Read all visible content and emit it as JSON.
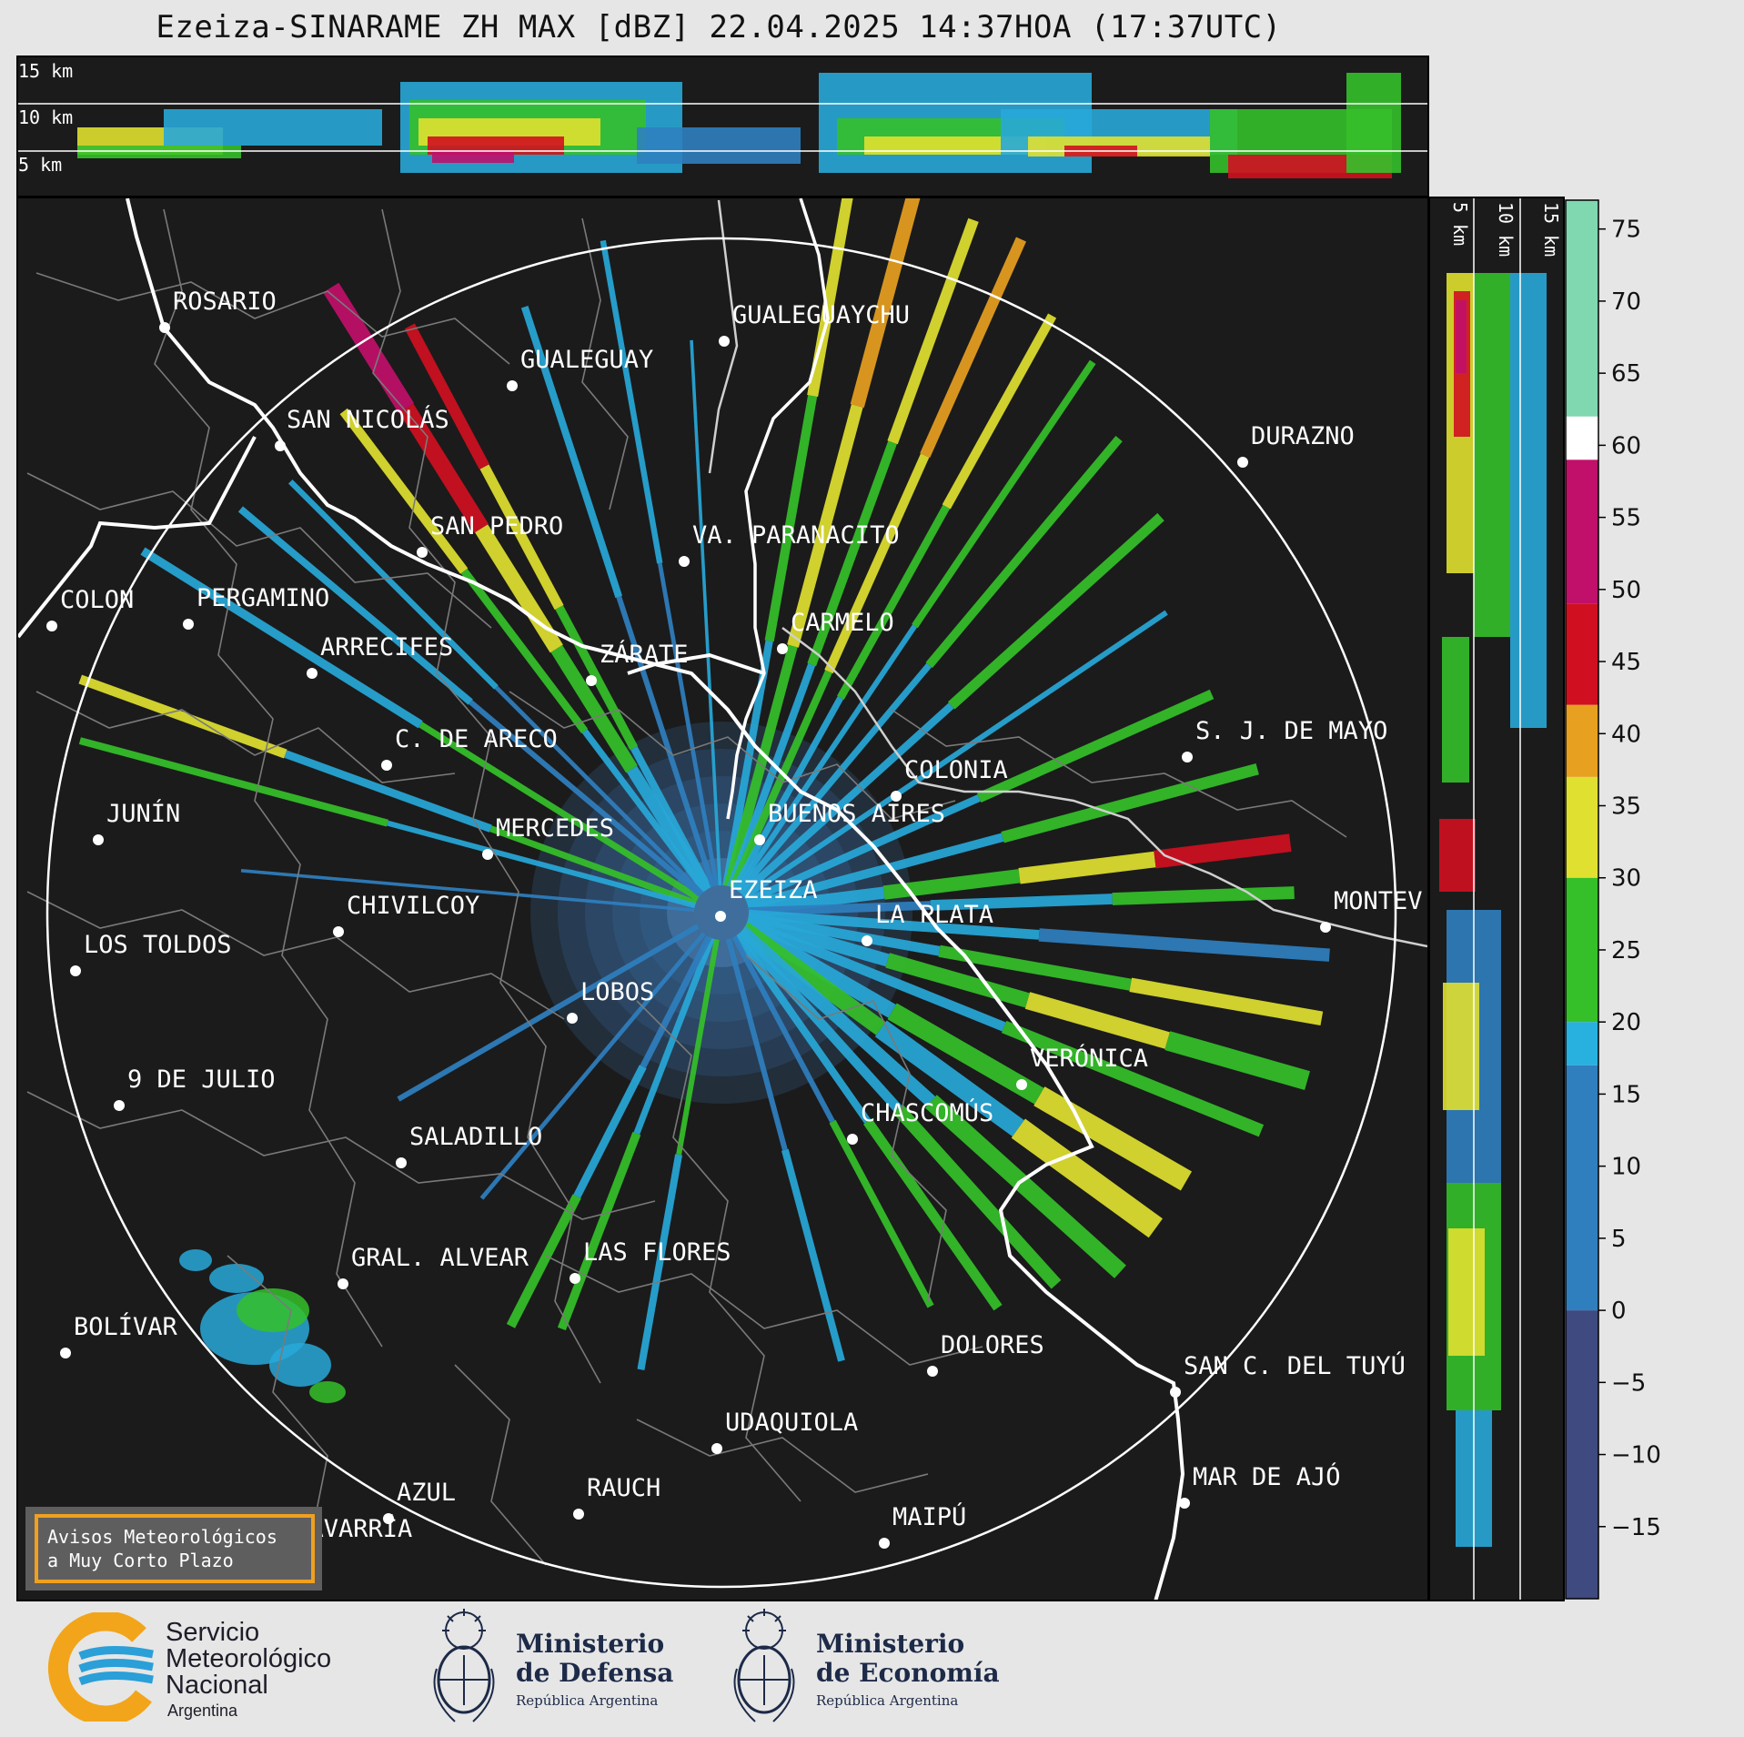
{
  "title": "Ezeiza-SINARAME ZH MAX [dBZ] 22.04.2025 14:37HOA (17:37UTC)",
  "top_panel": {
    "height_labels": [
      "15 km",
      "10 km",
      "5 km"
    ]
  },
  "side_panel": {
    "height_labels": [
      "5 km",
      "10 km",
      "15 km"
    ]
  },
  "colorbar": {
    "ticks": [
      "75",
      "70",
      "65",
      "60",
      "55",
      "50",
      "45",
      "40",
      "35",
      "30",
      "25",
      "20",
      "15",
      "10",
      "5",
      "0",
      "−5",
      "−10",
      "−15"
    ],
    "tick_values": [
      75,
      70,
      65,
      60,
      55,
      50,
      45,
      40,
      35,
      30,
      25,
      20,
      15,
      10,
      5,
      0,
      -5,
      -10,
      -15
    ],
    "range": [
      -20,
      77
    ],
    "bands": [
      {
        "from": -20,
        "to": 0,
        "color": "#3e4a80"
      },
      {
        "from": 0,
        "to": 17,
        "color": "#2f7fbf"
      },
      {
        "from": 17,
        "to": 20,
        "color": "#28b1df"
      },
      {
        "from": 20,
        "to": 30,
        "color": "#35c02a"
      },
      {
        "from": 30,
        "to": 37,
        "color": "#e0e030"
      },
      {
        "from": 37,
        "to": 42,
        "color": "#e8a020"
      },
      {
        "from": 42,
        "to": 49,
        "color": "#d01020"
      },
      {
        "from": 49,
        "to": 59,
        "color": "#c0106a"
      },
      {
        "from": 59,
        "to": 62,
        "color": "#ffffff"
      },
      {
        "from": 62,
        "to": 77,
        "color": "#7fd8b0"
      }
    ]
  },
  "map": {
    "places": [
      {
        "name": "ROSARIO"
      },
      {
        "name": "GUALEGUAYCHU"
      },
      {
        "name": "GUALEGUAY"
      },
      {
        "name": "SAN NICOLÁS"
      },
      {
        "name": "DURAZNO"
      },
      {
        "name": "SAN PEDRO"
      },
      {
        "name": "VA. PARANACITO"
      },
      {
        "name": "COLON"
      },
      {
        "name": "PERGAMINO"
      },
      {
        "name": "CARMELO"
      },
      {
        "name": "ARRECIFES"
      },
      {
        "name": "ZÁRATE"
      },
      {
        "name": "S. J. DE MAYO"
      },
      {
        "name": "C. DE ARECO"
      },
      {
        "name": "COLONIA"
      },
      {
        "name": "JUNÍN"
      },
      {
        "name": "BUENOS AIRES"
      },
      {
        "name": "MERCEDES"
      },
      {
        "name": "EZEIZA"
      },
      {
        "name": "MONTEV"
      },
      {
        "name": "CHIVILCOY"
      },
      {
        "name": "LA PLATA"
      },
      {
        "name": "LOS TOLDOS"
      },
      {
        "name": "LOBOS"
      },
      {
        "name": "VERÓNICA"
      },
      {
        "name": "9 DE JULIO"
      },
      {
        "name": "CHASCOMÚS"
      },
      {
        "name": "SALADILLO"
      },
      {
        "name": "GRAL. ALVEAR"
      },
      {
        "name": "LAS FLORES"
      },
      {
        "name": "BOLÍVAR"
      },
      {
        "name": "DOLORES"
      },
      {
        "name": "SAN C. DEL TUYÚ"
      },
      {
        "name": "UDAQUIOLA"
      },
      {
        "name": "AZUL"
      },
      {
        "name": "RAUCH"
      },
      {
        "name": "MAR DE AJÓ"
      },
      {
        "name": "OLAVARRÍA"
      },
      {
        "name": "MAIPÚ"
      }
    ]
  },
  "notice": {
    "line1": "Avisos Meteorológicos",
    "line2": "a Muy Corto Plazo"
  },
  "footer": {
    "smn": {
      "line1": "Servicio",
      "line2": "Meteorológico",
      "line3": "Nacional",
      "line4": "Argentina"
    },
    "defensa": {
      "line1": "Ministerio",
      "line2": "de Defensa",
      "line3": "República Argentina"
    },
    "economia": {
      "line1": "Ministerio",
      "line2": "de Economía",
      "line3": "República Argentina"
    }
  }
}
